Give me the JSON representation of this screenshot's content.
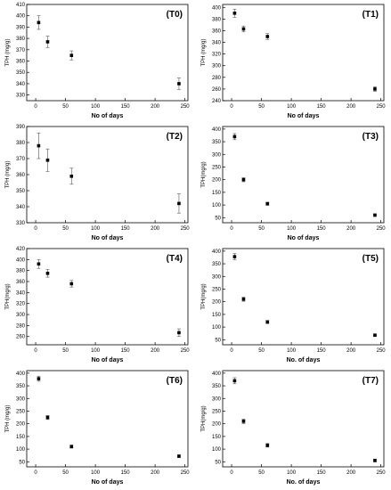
{
  "chart_data": [
    {
      "type": "scatter",
      "title": "(T0)",
      "xlabel": "No of days",
      "ylabel": "TPH (mg/g)",
      "xlim": [
        -15,
        255
      ],
      "ylim": [
        325,
        410
      ],
      "xticks": [
        "0",
        "50",
        "100",
        "150",
        "200",
        "250"
      ],
      "yticks": [
        "330",
        "340",
        "350",
        "360",
        "370",
        "380",
        "390",
        "400",
        "410"
      ],
      "series": [
        {
          "x": [
            5,
            20,
            60,
            240
          ],
          "y": [
            394,
            377,
            365,
            340
          ],
          "err": [
            6,
            5,
            4,
            5
          ]
        }
      ]
    },
    {
      "type": "scatter",
      "title": "(T1)",
      "xlabel": "No of days",
      "ylabel": "TPH (mg/g)",
      "xlim": [
        -15,
        255
      ],
      "ylim": [
        240,
        405
      ],
      "xticks": [
        "0",
        "50",
        "100",
        "150",
        "200",
        "250"
      ],
      "yticks": [
        "240",
        "260",
        "280",
        "300",
        "320",
        "340",
        "360",
        "380",
        "400"
      ],
      "series": [
        {
          "x": [
            5,
            20,
            60,
            240
          ],
          "y": [
            390,
            363,
            350,
            260
          ],
          "err": [
            7,
            5,
            5,
            4
          ]
        }
      ]
    },
    {
      "type": "scatter",
      "title": "(T2)",
      "xlabel": "No of days",
      "ylabel": "TPH (mg/g)",
      "xlim": [
        -15,
        255
      ],
      "ylim": [
        330,
        390
      ],
      "xticks": [
        "0",
        "50",
        "100",
        "150",
        "200",
        "250"
      ],
      "yticks": [
        "330",
        "340",
        "350",
        "360",
        "370",
        "380",
        "390"
      ],
      "series": [
        {
          "x": [
            5,
            20,
            60,
            240
          ],
          "y": [
            378,
            369,
            359,
            342
          ],
          "err": [
            8,
            7,
            5,
            6
          ]
        }
      ]
    },
    {
      "type": "scatter",
      "title": "(T3)",
      "xlabel": "No of days",
      "ylabel": "TPH(mg/g)",
      "xlim": [
        -15,
        255
      ],
      "ylim": [
        30,
        410
      ],
      "xticks": [
        "0",
        "50",
        "100",
        "150",
        "200",
        "250"
      ],
      "yticks": [
        "50",
        "100",
        "150",
        "200",
        "250",
        "300",
        "350",
        "400"
      ],
      "series": [
        {
          "x": [
            5,
            20,
            60,
            240
          ],
          "y": [
            370,
            200,
            105,
            60
          ],
          "err": [
            12,
            8,
            6,
            5
          ]
        }
      ]
    },
    {
      "type": "scatter",
      "title": "(T4)",
      "xlabel": "No of days",
      "ylabel": "TPH(mg/g)",
      "xlim": [
        -15,
        255
      ],
      "ylim": [
        245,
        420
      ],
      "xticks": [
        "0",
        "50",
        "100",
        "150",
        "200",
        "250"
      ],
      "yticks": [
        "260",
        "280",
        "300",
        "320",
        "340",
        "360",
        "380",
        "400",
        "420"
      ],
      "series": [
        {
          "x": [
            5,
            20,
            60,
            240
          ],
          "y": [
            392,
            375,
            356,
            267
          ],
          "err": [
            8,
            7,
            6,
            7
          ]
        }
      ]
    },
    {
      "type": "scatter",
      "title": "(T5)",
      "xlabel": "No. of days",
      "ylabel": "TPH(mg/g)",
      "xlim": [
        -15,
        255
      ],
      "ylim": [
        30,
        410
      ],
      "xticks": [
        "0",
        "50",
        "100",
        "150",
        "200",
        "250"
      ],
      "yticks": [
        "50",
        "100",
        "150",
        "200",
        "250",
        "300",
        "350",
        "400"
      ],
      "series": [
        {
          "x": [
            5,
            20,
            60,
            240
          ],
          "y": [
            378,
            210,
            120,
            68
          ],
          "err": [
            12,
            8,
            6,
            5
          ]
        }
      ]
    },
    {
      "type": "scatter",
      "title": "(T6)",
      "xlabel": "No of days",
      "ylabel": "TPH (mg/g)",
      "xlim": [
        -15,
        255
      ],
      "ylim": [
        30,
        410
      ],
      "xticks": [
        "0",
        "50",
        "100",
        "150",
        "200",
        "250"
      ],
      "yticks": [
        "50",
        "100",
        "150",
        "200",
        "250",
        "300",
        "350",
        "400"
      ],
      "series": [
        {
          "x": [
            5,
            20,
            60,
            240
          ],
          "y": [
            378,
            225,
            110,
            72
          ],
          "err": [
            10,
            8,
            6,
            5
          ]
        }
      ]
    },
    {
      "type": "scatter",
      "title": "(T7)",
      "xlabel": "No. of days",
      "ylabel": "TPH(mg/g)",
      "xlim": [
        -15,
        255
      ],
      "ylim": [
        30,
        410
      ],
      "xticks": [
        "0",
        "50",
        "100",
        "150",
        "200",
        "250"
      ],
      "yticks": [
        "50",
        "100",
        "150",
        "200",
        "250",
        "300",
        "350",
        "400"
      ],
      "series": [
        {
          "x": [
            5,
            20,
            60,
            240
          ],
          "y": [
            370,
            210,
            115,
            55
          ],
          "err": [
            12,
            9,
            7,
            5
          ]
        }
      ]
    }
  ]
}
